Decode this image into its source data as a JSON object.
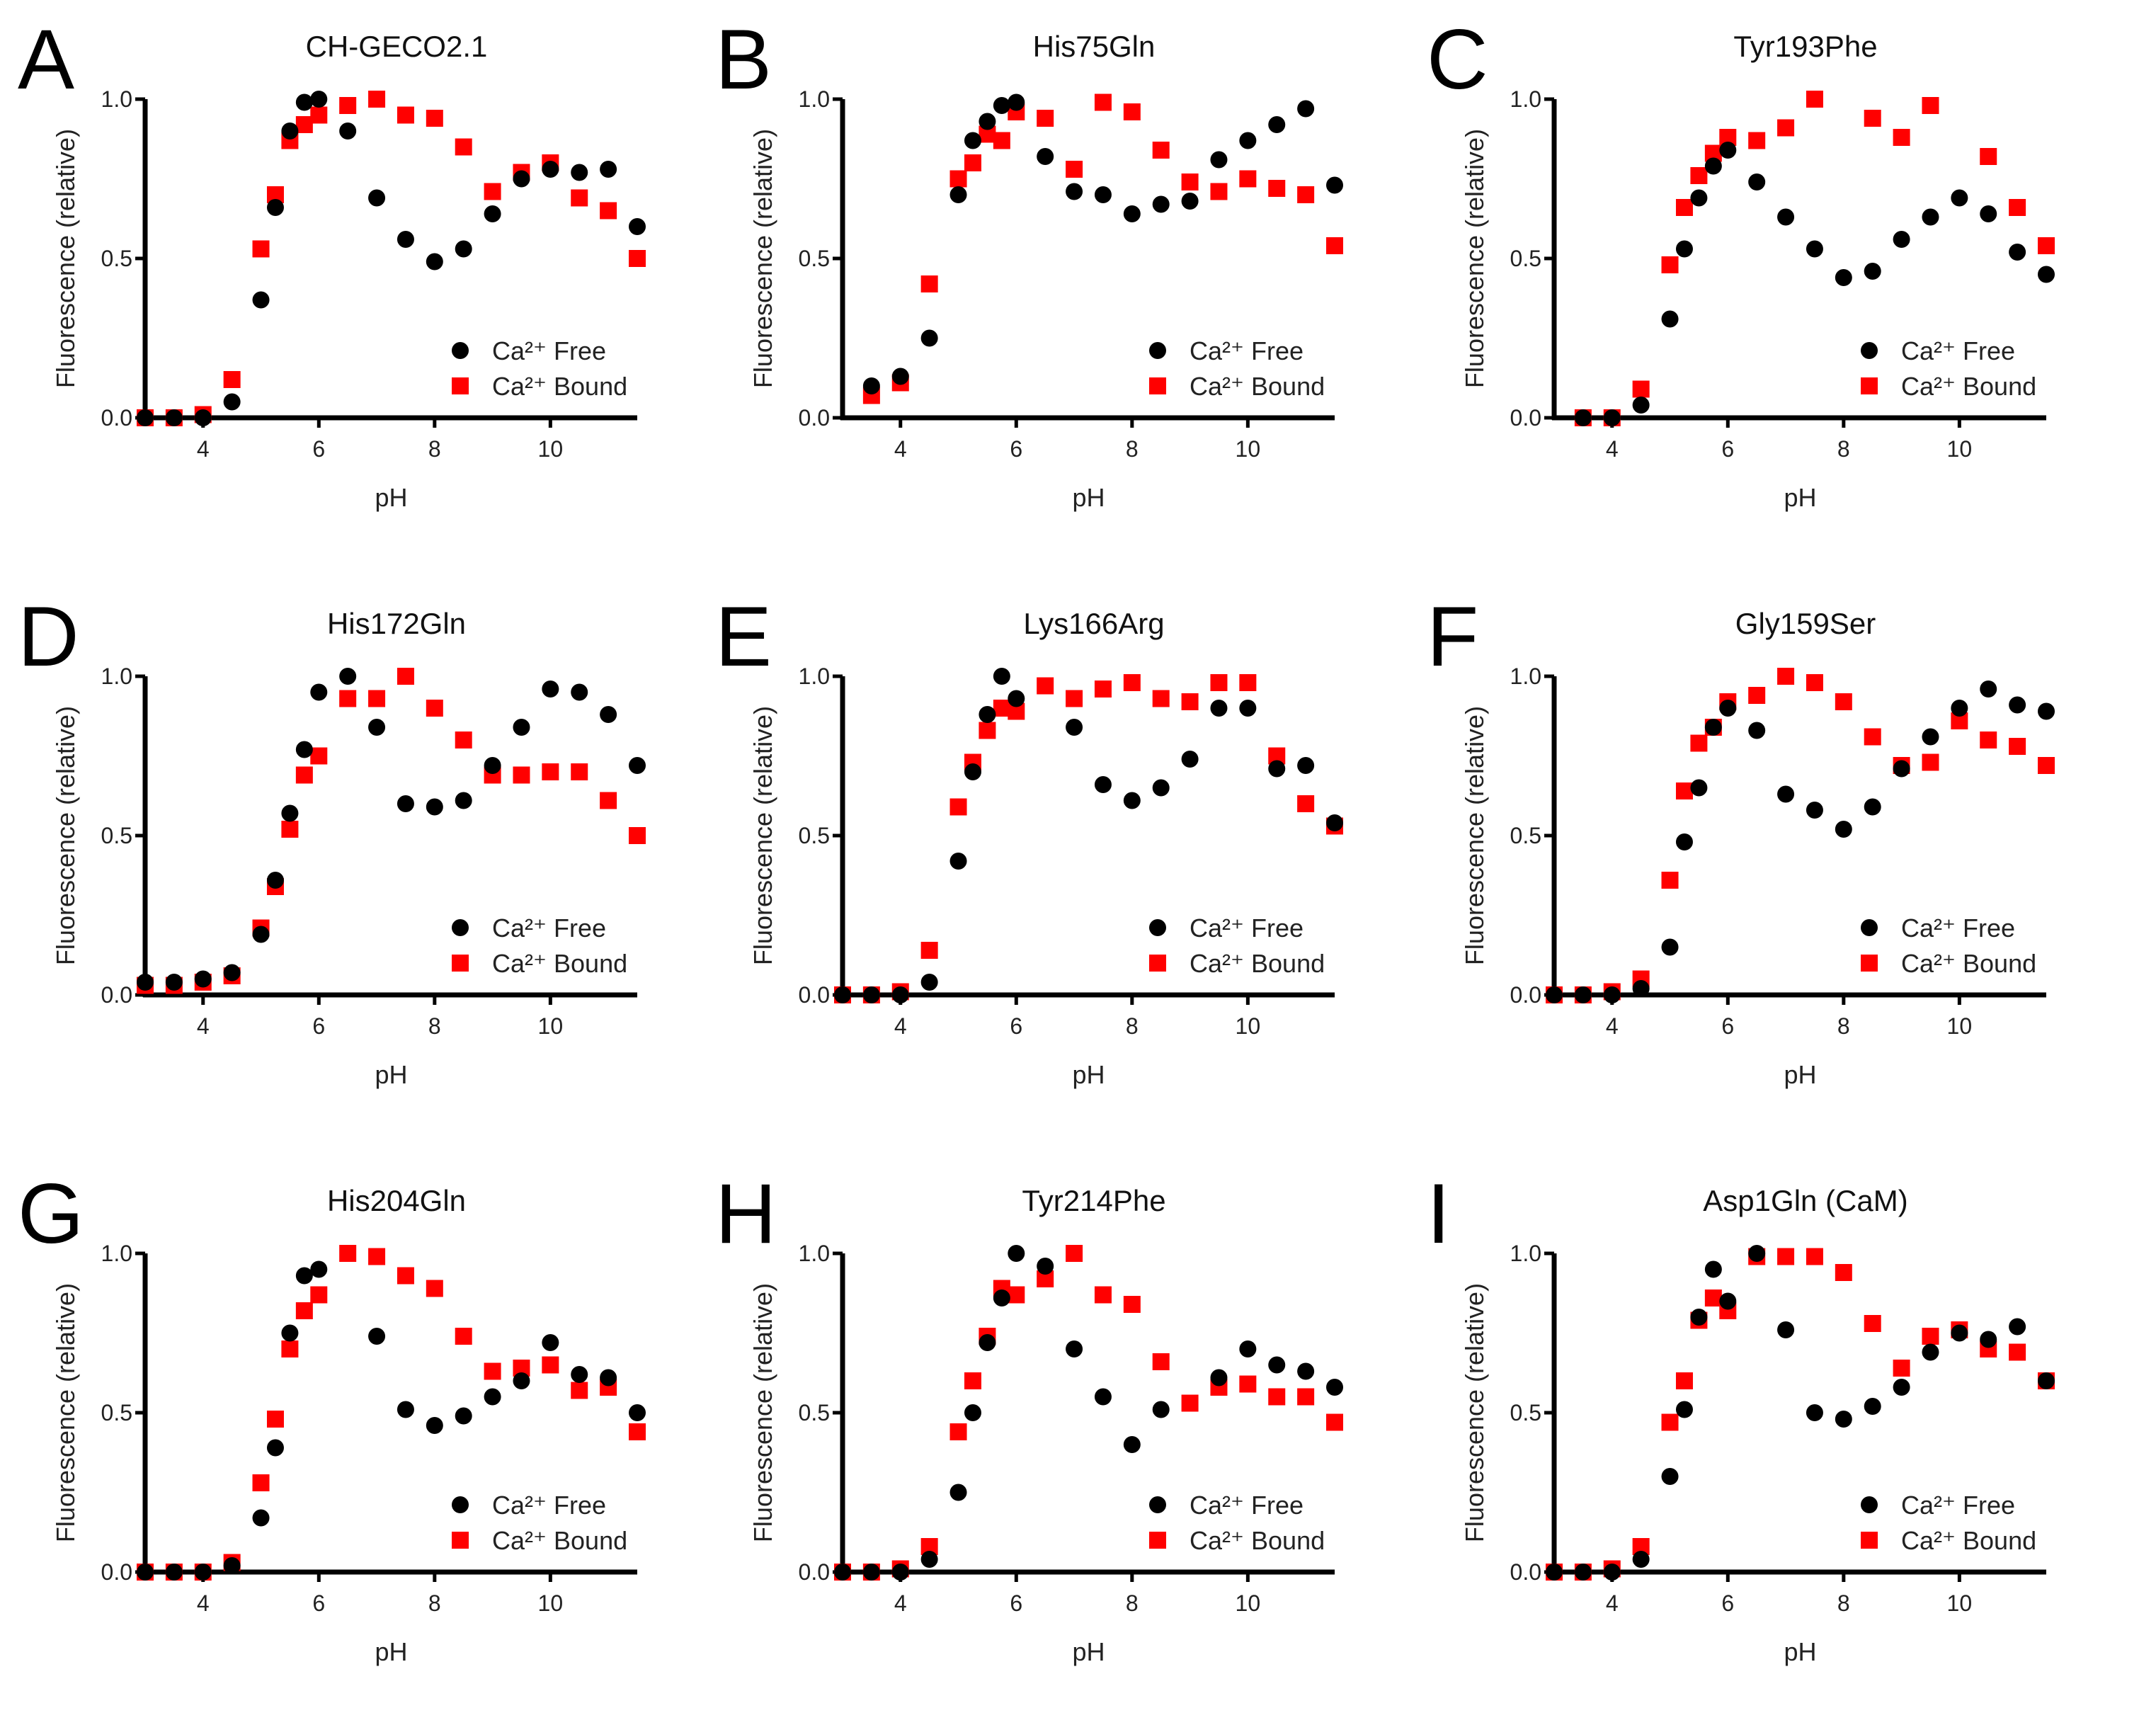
{
  "chart_data": [
    {
      "type": "scatter",
      "panel": "A",
      "title": "CH-GECO2.1",
      "xlabel": "pH",
      "ylabel": "Fluorescence (relative)",
      "xlim": [
        3,
        11.5
      ],
      "ylim": [
        0,
        1
      ],
      "xticks": [
        "4",
        "6",
        "8",
        "10"
      ],
      "yticks": [
        "0.0",
        "0.5",
        "1.0"
      ],
      "legend": [
        "Ca²⁺ Free",
        "Ca²⁺ Bound"
      ],
      "legend_position": "bottom-right",
      "x": [
        3,
        3.5,
        4,
        4.5,
        5,
        5.25,
        5.5,
        5.75,
        6,
        6.5,
        7,
        7.5,
        8,
        8.5,
        9,
        9.5,
        10,
        10.5,
        11,
        11.5
      ],
      "series": [
        {
          "name": "Ca²⁺ Free",
          "values": [
            0,
            0,
            0,
            0.05,
            0.37,
            0.66,
            0.9,
            0.99,
            1.0,
            0.9,
            0.69,
            0.56,
            0.49,
            0.53,
            0.64,
            0.75,
            0.78,
            0.77,
            0.78,
            0.6
          ]
        },
        {
          "name": "Ca²⁺ Bound",
          "values": [
            0,
            0,
            0.01,
            0.12,
            0.53,
            0.7,
            0.87,
            0.92,
            0.95,
            0.98,
            1.0,
            0.95,
            0.94,
            0.85,
            0.71,
            0.77,
            0.8,
            0.69,
            0.65,
            0.5
          ]
        }
      ]
    },
    {
      "type": "scatter",
      "panel": "B",
      "title": "His75Gln",
      "xlabel": "pH",
      "ylabel": "Fluorescence (relative)",
      "xlim": [
        3,
        11.5
      ],
      "ylim": [
        0,
        1
      ],
      "xticks": [
        "4",
        "6",
        "8",
        "10"
      ],
      "yticks": [
        "0.0",
        "0.5",
        "1.0"
      ],
      "legend": [
        "Ca²⁺ Free",
        "Ca²⁺ Bound"
      ],
      "legend_position": "bottom-right",
      "x": [
        3.5,
        4,
        4.5,
        5,
        5.25,
        5.5,
        5.75,
        6,
        6.5,
        7,
        7.5,
        8,
        8.5,
        9,
        9.5,
        10,
        10.5,
        11,
        11.5
      ],
      "series": [
        {
          "name": "Ca²⁺ Free",
          "values": [
            0.1,
            0.13,
            0.25,
            0.7,
            0.87,
            0.93,
            0.98,
            0.99,
            0.82,
            0.71,
            0.7,
            0.64,
            0.67,
            0.68,
            0.81,
            0.87,
            0.92,
            0.97,
            0.73
          ]
        },
        {
          "name": "Ca²⁺ Bound",
          "values": [
            0.07,
            0.11,
            0.42,
            0.75,
            0.8,
            0.89,
            0.87,
            0.96,
            0.94,
            0.78,
            0.99,
            0.96,
            0.84,
            0.74,
            0.71,
            0.75,
            0.72,
            0.7,
            0.54
          ]
        }
      ]
    },
    {
      "type": "scatter",
      "panel": "C",
      "title": "Tyr193Phe",
      "xlabel": "pH",
      "ylabel": "Fluorescence (relative)",
      "xlim": [
        3,
        11.5
      ],
      "ylim": [
        0,
        1
      ],
      "xticks": [
        "4",
        "6",
        "8",
        "10"
      ],
      "yticks": [
        "0.0",
        "0.5",
        "1.0"
      ],
      "legend": [
        "Ca²⁺ Free",
        "Ca²⁺ Bound"
      ],
      "legend_position": "bottom-right",
      "x": [
        3.5,
        4,
        4.5,
        5,
        5.25,
        5.5,
        5.75,
        6,
        6.5,
        7,
        7.5,
        8,
        8.5,
        9,
        9.5,
        10,
        10.5,
        11,
        11.5
      ],
      "series": [
        {
          "name": "Ca²⁺ Free",
          "values": [
            0,
            0,
            0.04,
            0.31,
            0.53,
            0.69,
            0.79,
            0.84,
            0.74,
            0.63,
            0.53,
            0.44,
            0.46,
            0.56,
            0.63,
            0.69,
            0.64,
            0.52,
            0.45
          ]
        },
        {
          "name": "Ca²⁺ Bound",
          "values": [
            0,
            0,
            0.09,
            0.48,
            0.66,
            0.76,
            0.83,
            0.88,
            0.87,
            0.91,
            1.0,
            null,
            0.94,
            0.88,
            0.98,
            null,
            0.82,
            0.66,
            0.54
          ]
        }
      ]
    },
    {
      "type": "scatter",
      "panel": "D",
      "title": "His172Gln",
      "xlabel": "pH",
      "ylabel": "Fluorescence (relative)",
      "xlim": [
        3,
        11.5
      ],
      "ylim": [
        0,
        1
      ],
      "xticks": [
        "4",
        "6",
        "8",
        "10"
      ],
      "yticks": [
        "0.0",
        "0.5",
        "1.0"
      ],
      "legend": [
        "Ca²⁺ Free",
        "Ca²⁺ Bound"
      ],
      "legend_position": "bottom-right",
      "x": [
        3,
        3.5,
        4,
        4.5,
        5,
        5.25,
        5.5,
        5.75,
        6,
        6.5,
        7,
        7.5,
        8,
        8.5,
        9,
        9.5,
        10,
        10.5,
        11,
        11.5
      ],
      "series": [
        {
          "name": "Ca²⁺ Free",
          "values": [
            0.04,
            0.04,
            0.05,
            0.07,
            0.19,
            0.36,
            0.57,
            0.77,
            0.95,
            1.0,
            0.84,
            0.6,
            0.59,
            0.61,
            0.72,
            0.84,
            0.96,
            0.95,
            0.88,
            0.72
          ]
        },
        {
          "name": "Ca²⁺ Bound",
          "values": [
            0.03,
            0.03,
            0.04,
            0.06,
            0.21,
            0.34,
            0.52,
            0.69,
            0.75,
            0.93,
            0.93,
            1.0,
            0.9,
            0.8,
            0.69,
            0.69,
            0.7,
            0.7,
            0.61,
            0.5
          ]
        }
      ]
    },
    {
      "type": "scatter",
      "panel": "E",
      "title": "Lys166Arg",
      "xlabel": "pH",
      "ylabel": "Fluorescence (relative)",
      "xlim": [
        3,
        11.5
      ],
      "ylim": [
        0,
        1
      ],
      "xticks": [
        "4",
        "6",
        "8",
        "10"
      ],
      "yticks": [
        "0.0",
        "0.5",
        "1.0"
      ],
      "legend": [
        "Ca²⁺ Free",
        "Ca²⁺ Bound"
      ],
      "legend_position": "bottom-right",
      "x": [
        3,
        3.5,
        4,
        4.5,
        5,
        5.25,
        5.5,
        5.75,
        6,
        6.5,
        7,
        7.5,
        8,
        8.5,
        9,
        9.5,
        10,
        10.5,
        11,
        11.5
      ],
      "series": [
        {
          "name": "Ca²⁺ Free",
          "values": [
            0,
            0,
            0,
            0.04,
            0.42,
            0.7,
            0.88,
            1.0,
            0.93,
            null,
            0.84,
            0.66,
            0.61,
            0.65,
            0.74,
            0.9,
            0.9,
            0.71,
            0.72,
            0.54
          ]
        },
        {
          "name": "Ca²⁺ Bound",
          "values": [
            0,
            0,
            0.01,
            0.14,
            0.59,
            0.73,
            0.83,
            0.9,
            0.89,
            0.97,
            0.93,
            0.96,
            0.98,
            0.93,
            0.92,
            0.98,
            0.98,
            0.75,
            0.6,
            0.53
          ]
        }
      ]
    },
    {
      "type": "scatter",
      "panel": "F",
      "title": "Gly159Ser",
      "xlabel": "pH",
      "ylabel": "Fluorescence (relative)",
      "xlim": [
        3,
        11.5
      ],
      "ylim": [
        0,
        1
      ],
      "xticks": [
        "4",
        "6",
        "8",
        "10"
      ],
      "yticks": [
        "0.0",
        "0.5",
        "1.0"
      ],
      "legend": [
        "Ca²⁺ Free",
        "Ca²⁺ Bound"
      ],
      "legend_position": "bottom-right",
      "x": [
        3,
        3.5,
        4,
        4.5,
        5,
        5.25,
        5.5,
        5.75,
        6,
        6.5,
        7,
        7.5,
        8,
        8.5,
        9,
        9.5,
        10,
        10.5,
        11,
        11.5
      ],
      "series": [
        {
          "name": "Ca²⁺ Free",
          "values": [
            0,
            0,
            0,
            0.02,
            0.15,
            0.48,
            0.65,
            0.84,
            0.9,
            0.83,
            0.63,
            0.58,
            0.52,
            0.59,
            0.71,
            0.81,
            0.9,
            0.96,
            0.91,
            0.89
          ]
        },
        {
          "name": "Ca²⁺ Bound",
          "values": [
            0,
            0,
            0.01,
            0.05,
            0.36,
            0.64,
            0.79,
            0.84,
            0.92,
            0.94,
            1.0,
            0.98,
            0.92,
            0.81,
            0.72,
            0.73,
            0.86,
            0.8,
            0.78,
            0.72
          ]
        }
      ]
    },
    {
      "type": "scatter",
      "panel": "G",
      "title": "His204Gln",
      "xlabel": "pH",
      "ylabel": "Fluorescence (relative)",
      "xlim": [
        3,
        11.5
      ],
      "ylim": [
        0,
        1
      ],
      "xticks": [
        "4",
        "6",
        "8",
        "10"
      ],
      "yticks": [
        "0.0",
        "0.5",
        "1.0"
      ],
      "legend": [
        "Ca²⁺ Free",
        "Ca²⁺ Bound"
      ],
      "legend_position": "bottom-right",
      "x": [
        3,
        3.5,
        4,
        4.5,
        5,
        5.25,
        5.5,
        5.75,
        6,
        6.5,
        7,
        7.5,
        8,
        8.5,
        9,
        9.5,
        10,
        10.5,
        11,
        11.5
      ],
      "series": [
        {
          "name": "Ca²⁺ Free",
          "values": [
            0,
            0,
            0,
            0.02,
            0.17,
            0.39,
            0.75,
            0.93,
            0.95,
            null,
            0.74,
            0.51,
            0.46,
            0.49,
            0.55,
            0.6,
            0.72,
            0.62,
            0.61,
            0.5
          ]
        },
        {
          "name": "Ca²⁺ Bound",
          "values": [
            0,
            0,
            0,
            0.03,
            0.28,
            0.48,
            0.7,
            0.82,
            0.87,
            1.0,
            0.99,
            0.93,
            0.89,
            0.74,
            0.63,
            0.64,
            0.65,
            0.57,
            0.58,
            0.44
          ]
        }
      ]
    },
    {
      "type": "scatter",
      "panel": "H",
      "title": "Tyr214Phe",
      "xlabel": "pH",
      "ylabel": "Fluorescence (relative)",
      "xlim": [
        3,
        11.5
      ],
      "ylim": [
        0,
        1
      ],
      "xticks": [
        "4",
        "6",
        "8",
        "10"
      ],
      "yticks": [
        "0.0",
        "0.5",
        "1.0"
      ],
      "legend": [
        "Ca²⁺ Free",
        "Ca²⁺ Bound"
      ],
      "legend_position": "bottom-right",
      "x": [
        3,
        3.5,
        4,
        4.5,
        5,
        5.25,
        5.5,
        5.75,
        6,
        6.5,
        7,
        7.5,
        8,
        8.5,
        9,
        9.5,
        10,
        10.5,
        11,
        11.5
      ],
      "series": [
        {
          "name": "Ca²⁺ Free",
          "values": [
            0,
            0,
            0,
            0.04,
            0.25,
            0.5,
            0.72,
            0.86,
            1.0,
            0.96,
            0.7,
            0.55,
            0.4,
            0.51,
            null,
            0.61,
            0.7,
            0.65,
            0.63,
            0.58
          ]
        },
        {
          "name": "Ca²⁺ Bound",
          "values": [
            0,
            0,
            0.01,
            0.08,
            0.44,
            0.6,
            0.74,
            0.89,
            0.87,
            0.92,
            1.0,
            0.87,
            0.84,
            0.66,
            0.53,
            0.58,
            0.59,
            0.55,
            0.55,
            0.47
          ]
        }
      ]
    },
    {
      "type": "scatter",
      "panel": "I",
      "title": "Asp1Gln (CaM)",
      "xlabel": "pH",
      "ylabel": "Fluorescence (relative)",
      "xlim": [
        3,
        11.5
      ],
      "ylim": [
        0,
        1
      ],
      "xticks": [
        "4",
        "6",
        "8",
        "10"
      ],
      "yticks": [
        "0.0",
        "0.5",
        "1.0"
      ],
      "legend": [
        "Ca²⁺ Free",
        "Ca²⁺ Bound"
      ],
      "legend_position": "bottom-right",
      "x": [
        3,
        3.5,
        4,
        4.5,
        5,
        5.25,
        5.5,
        5.75,
        6,
        6.5,
        7,
        7.5,
        8,
        8.5,
        9,
        9.5,
        10,
        10.5,
        11,
        11.5
      ],
      "series": [
        {
          "name": "Ca²⁺ Free",
          "values": [
            0,
            0,
            0,
            0.04,
            0.3,
            0.51,
            0.8,
            0.95,
            0.85,
            1.0,
            0.76,
            0.5,
            0.48,
            0.52,
            0.58,
            0.69,
            0.75,
            0.73,
            0.77,
            0.6
          ]
        },
        {
          "name": "Ca²⁺ Bound",
          "values": [
            0,
            0,
            0.01,
            0.08,
            0.47,
            0.6,
            0.79,
            0.86,
            0.82,
            0.99,
            0.99,
            0.99,
            0.94,
            0.78,
            0.64,
            0.74,
            0.76,
            0.7,
            0.69,
            0.6
          ]
        }
      ]
    }
  ],
  "colors": {
    "free": "#000000",
    "bound": "#ff0000",
    "axis": "#000000"
  }
}
